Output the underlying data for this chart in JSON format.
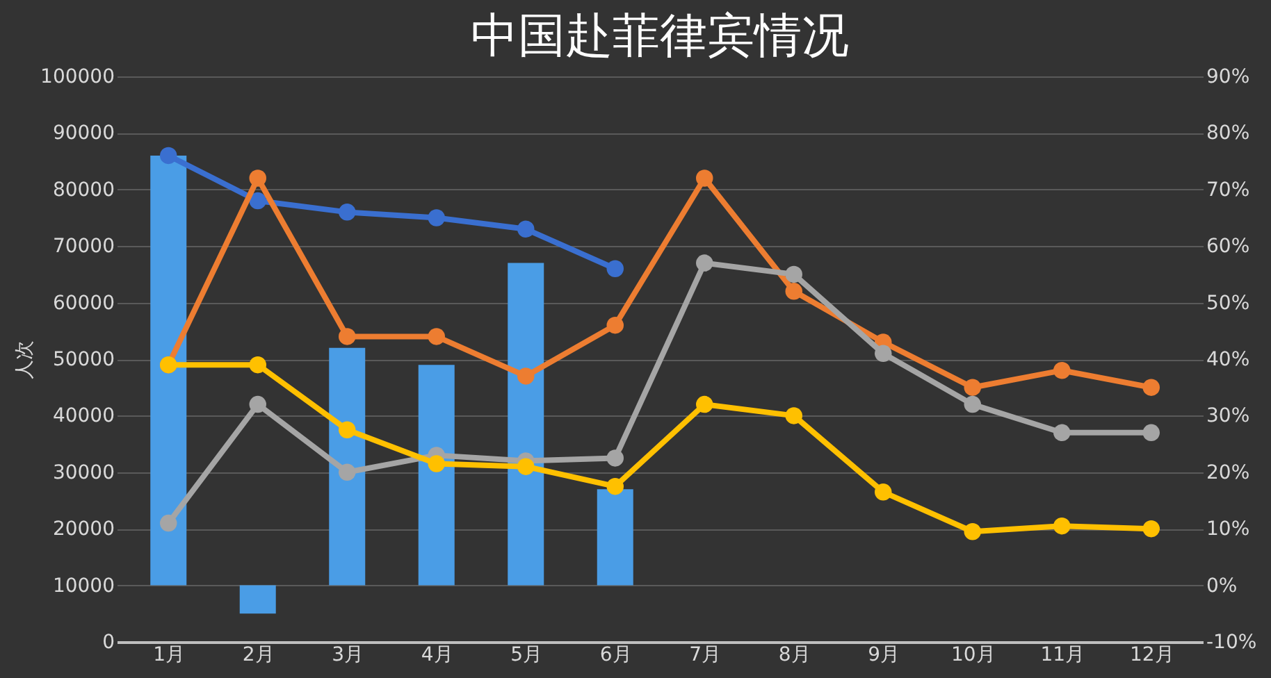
{
  "chart_data": {
    "type": "line",
    "title": "中国赴菲律宾情况",
    "ylabel": "人次",
    "categories": [
      "1月",
      "2月",
      "3月",
      "4月",
      "5月",
      "6月",
      "7月",
      "8月",
      "9月",
      "10月",
      "11月",
      "12月"
    ],
    "series": [
      {
        "type": "bar",
        "axis": "y2",
        "color": "#4a9de6",
        "values": [
          76,
          -5,
          42,
          39,
          57,
          17,
          null,
          null,
          null,
          null,
          null,
          null
        ]
      },
      {
        "color": "#3a6fd0",
        "values": [
          86000,
          78000,
          76000,
          75000,
          73000,
          66000,
          null,
          null,
          null,
          null,
          null,
          null
        ]
      },
      {
        "color": "#ed7d31",
        "values": [
          49000,
          82000,
          54000,
          54000,
          47000,
          56000,
          82000,
          62000,
          53000,
          45000,
          48000,
          45000
        ]
      },
      {
        "color": "#a5a5a5",
        "values": [
          21000,
          42000,
          30000,
          33000,
          32000,
          32500,
          67000,
          65000,
          51000,
          42000,
          37000,
          37000
        ]
      },
      {
        "color": "#ffc000",
        "values": [
          49000,
          49000,
          37500,
          31500,
          31000,
          27500,
          42000,
          40000,
          26500,
          19500,
          20500,
          20000
        ]
      }
    ],
    "ylim": [
      0,
      100000
    ],
    "yticks": [
      0,
      10000,
      20000,
      30000,
      40000,
      50000,
      60000,
      70000,
      80000,
      90000,
      100000
    ],
    "y2lim": [
      -10,
      90
    ],
    "y2ticks": [
      {
        "value": -10,
        "label": "-10%"
      },
      {
        "value": 0,
        "label": "0%"
      },
      {
        "value": 10,
        "label": "10%"
      },
      {
        "value": 20,
        "label": "20%"
      },
      {
        "value": 30,
        "label": "30%"
      },
      {
        "value": 40,
        "label": "40%"
      },
      {
        "value": 50,
        "label": "50%"
      },
      {
        "value": 60,
        "label": "60%"
      },
      {
        "value": 70,
        "label": "70%"
      },
      {
        "value": 80,
        "label": "80%"
      },
      {
        "value": 90,
        "label": "90%"
      }
    ],
    "grid": "y",
    "marker": "circle"
  }
}
